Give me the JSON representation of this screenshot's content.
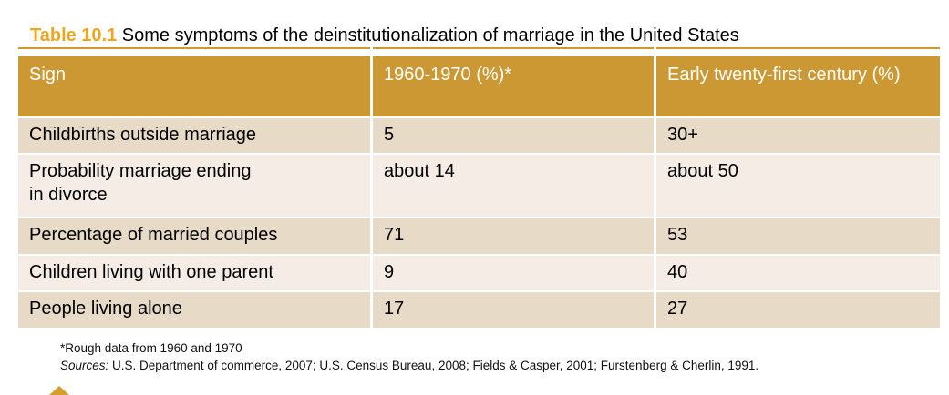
{
  "title": {
    "label": "Table 10.1",
    "text": " Some symptoms of the deinstitutionalization of marriage in the United States"
  },
  "table": {
    "columns": [
      "Sign",
      "1960-1970 (%)*",
      "Early twenty-first century (%)"
    ],
    "rows": [
      {
        "sign": "Childbirths outside marriage",
        "v1960": "5",
        "v21st": "30+"
      },
      {
        "sign": "Probability marriage ending\nin divorce",
        "v1960": "about 14",
        "v21st": "about 50"
      },
      {
        "sign": "Percentage of married couples",
        "v1960": "71",
        "v21st": "53"
      },
      {
        "sign": "Children living with one parent",
        "v1960": "9",
        "v21st": "40"
      },
      {
        "sign": "People living alone",
        "v1960": "17",
        "v21st": "27"
      }
    ]
  },
  "footnotes": {
    "note": "*Rough data from 1960 and 1970",
    "sources_label": "Sources:",
    "sources_text": " U.S. Department of commerce, 2007; U.S. Census Bureau, 2008; Fields & Casper, 2001; Furstenberg & Cherlin, 1991."
  },
  "colors": {
    "header_bg": "#CB9834",
    "row_dark": "#E7DAC6",
    "row_light": "#F5EDE5",
    "title_accent": "#F0A51E",
    "triangle": "#D79E2E"
  }
}
